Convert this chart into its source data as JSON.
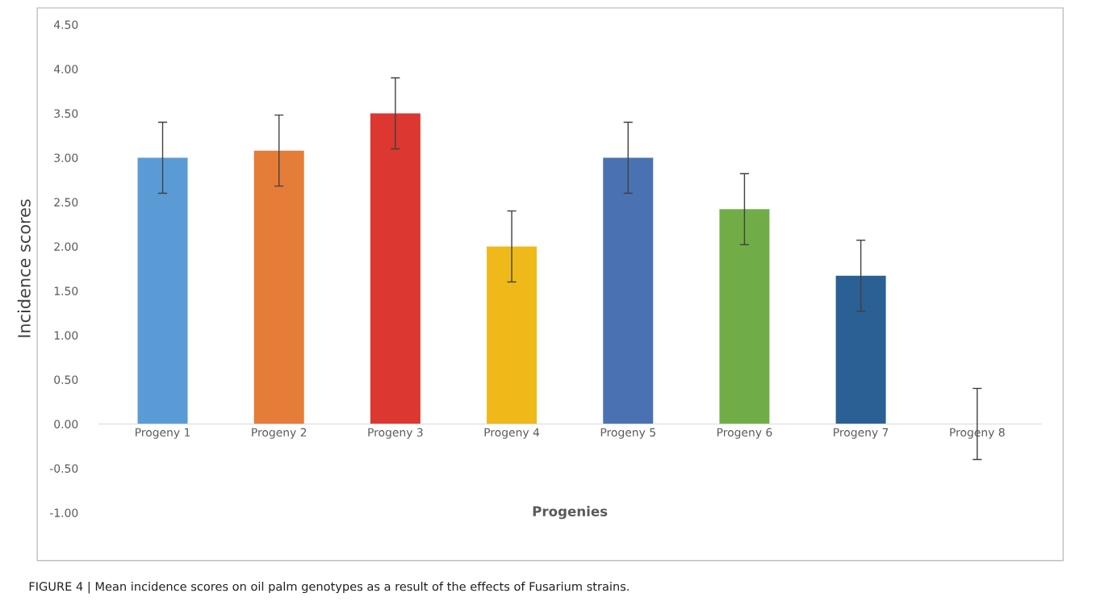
{
  "chart_data": {
    "type": "bar",
    "xlabel": "Progenies",
    "ylabel": "Incidence scores",
    "categories": [
      "Progeny 1",
      "Progeny 2",
      "Progeny 3",
      "Progeny 4",
      "Progeny 5",
      "Progeny 6",
      "Progeny 7",
      "Progeny 8"
    ],
    "values": [
      3.0,
      3.08,
      3.5,
      2.0,
      3.0,
      2.42,
      1.67,
      0.0
    ],
    "errors": [
      0.4,
      0.4,
      0.4,
      0.4,
      0.4,
      0.4,
      0.4,
      0.4
    ],
    "colors": [
      "#5b9bd5",
      "#e57c38",
      "#dc3730",
      "#f0b91a",
      "#4a72b2",
      "#70ad47",
      "#2a6094",
      "#7f7f7f"
    ],
    "ylim": [
      -1.0,
      4.5
    ],
    "yticks": [
      {
        "value": -1.0,
        "label": "-1.00"
      },
      {
        "value": -0.5,
        "label": "-0.50"
      },
      {
        "value": 0.0,
        "label": "0.00"
      },
      {
        "value": 0.5,
        "label": "0.50"
      },
      {
        "value": 1.0,
        "label": "1.00"
      },
      {
        "value": 1.5,
        "label": "1.50"
      },
      {
        "value": 2.0,
        "label": "2.00"
      },
      {
        "value": 2.5,
        "label": "2.50"
      },
      {
        "value": 3.0,
        "label": "3.00"
      },
      {
        "value": 3.5,
        "label": "3.50"
      },
      {
        "value": 4.0,
        "label": "4.00"
      },
      {
        "value": 4.5,
        "label": "4.50"
      }
    ],
    "grid": false,
    "legend": false,
    "annotations": [
      "FIGURE 4 | Mean incidence scores on oil palm genotypes as a result of the effects of Fusarium strains."
    ]
  }
}
